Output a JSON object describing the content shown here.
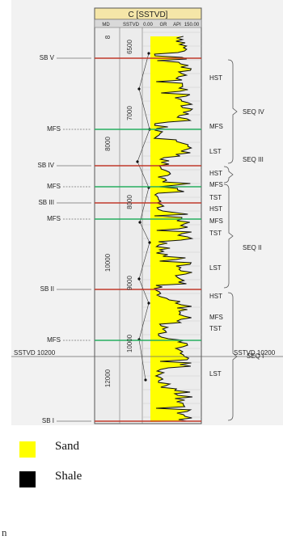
{
  "well": {
    "title": "C [SSTVD]",
    "columns": [
      "MD",
      "SSTVD",
      "0.00",
      "GR",
      "API",
      "150.00"
    ]
  },
  "depth_labels": {
    "md": [
      "8",
      "8000",
      "10000",
      "12000"
    ],
    "sstvd": [
      "6500",
      "7000",
      "8000",
      "9000",
      "10000"
    ]
  },
  "sstvd_marker": {
    "left": "SSTVD 10200",
    "right": "SSTVD 10200"
  },
  "surfaces": [
    {
      "id": "sbv",
      "label": "SB V",
      "type": "sb"
    },
    {
      "id": "mfs1",
      "label": "MFS",
      "type": "mfs"
    },
    {
      "id": "sbiv",
      "label": "SB IV",
      "type": "sb"
    },
    {
      "id": "mfs2",
      "label": "MFS",
      "type": "mfs"
    },
    {
      "id": "sbiii",
      "label": "SB III",
      "type": "sb"
    },
    {
      "id": "mfs3",
      "label": "MFS",
      "type": "mfs"
    },
    {
      "id": "sbii",
      "label": "SB II",
      "type": "sb"
    },
    {
      "id": "mfs4",
      "label": "MFS",
      "type": "mfs"
    },
    {
      "id": "sbi",
      "label": "SB I",
      "type": "sb"
    }
  ],
  "systems_tracts": [
    "HST",
    "MFS",
    "LST",
    "HST",
    "MFS",
    "TST",
    "HST",
    "MFS",
    "TST",
    "LST",
    "HST",
    "MFS",
    "TST",
    "LST"
  ],
  "sequences": [
    "SEQ IV",
    "SEQ III",
    "SEQ II",
    "SEQ I"
  ],
  "legend": [
    {
      "label": "Sand",
      "color": "#ffff00"
    },
    {
      "label": "Shale",
      "color": "#000000"
    }
  ],
  "footer_text": "n",
  "colors": {
    "sb_line": "#c0392b",
    "mfs_line": "#27ae60",
    "gr_fill": "#ffff00",
    "header": "#f5e6a8"
  }
}
